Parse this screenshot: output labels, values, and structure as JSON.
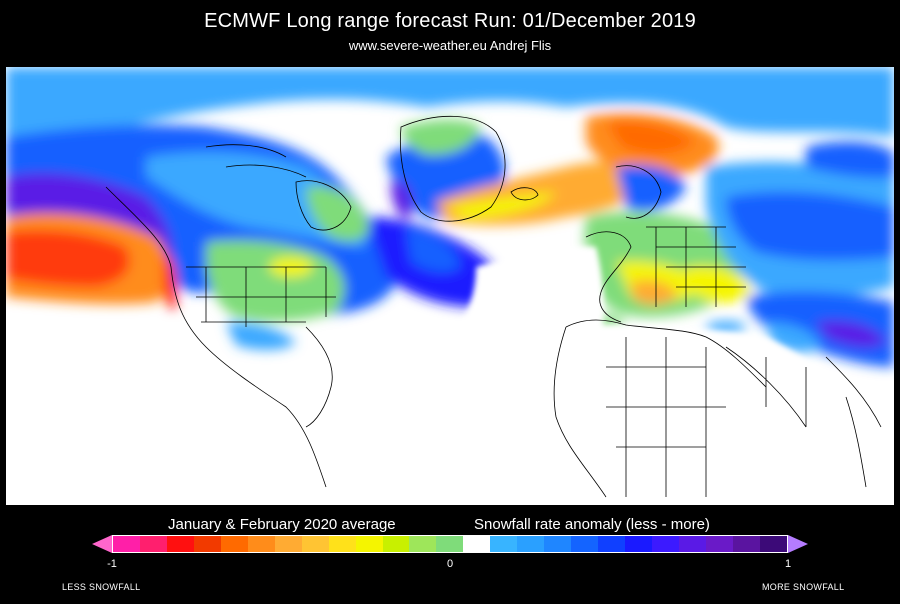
{
  "header": {
    "title": "ECMWF Long range forecast  Run: 01/December 2019",
    "subtitle": "www.severe-weather.eu   Andrej Flis"
  },
  "legend": {
    "left_heading": "January & February 2020 average",
    "right_heading": "Snowfall rate anomaly (less - more)",
    "ticks": [
      "-1",
      "0",
      "1"
    ],
    "less_label": "LESS SNOWFALL",
    "more_label": "MORE SNOWFALL",
    "colors": [
      "#ff1fa8",
      "#ff1f6e",
      "#ff1010",
      "#f23a00",
      "#ff6a00",
      "#ff8c1a",
      "#ffab33",
      "#ffc433",
      "#ffe11a",
      "#f5f500",
      "#c8f000",
      "#9ee65a",
      "#7fdc7a",
      "#ffffff",
      "#38b4ff",
      "#2aa0ff",
      "#1f86ff",
      "#1464ff",
      "#1040ff",
      "#1a1aff",
      "#3c1aff",
      "#5a1ae6",
      "#6a1ac8",
      "#5a14a0",
      "#3c0a78"
    ]
  },
  "map_colors": {
    "land_white": "#ffffff",
    "light_blue": "#3aa8ff",
    "blue": "#1560ff",
    "deep_blue": "#1a1aff",
    "purple": "#5a1ae6",
    "green": "#7fdc7a",
    "yellow": "#f5f500",
    "orange": "#ff8c1a",
    "red": "#ff1010",
    "border_line": "#000000"
  }
}
